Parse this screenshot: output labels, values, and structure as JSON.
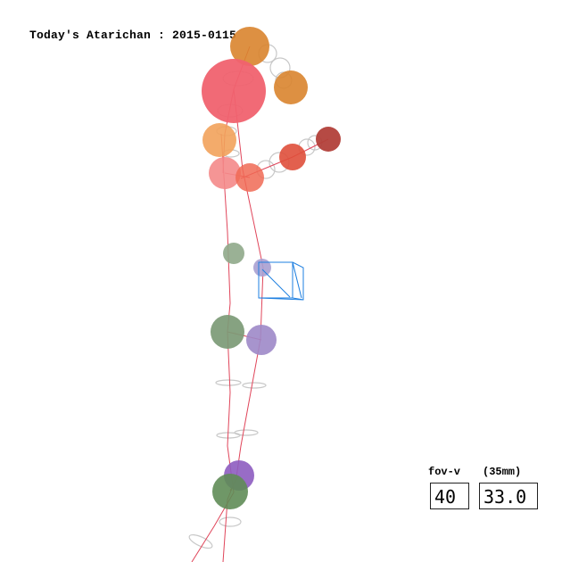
{
  "title": "Today's Atarichan : 2015-0115",
  "camera": {
    "fov_label": "fov-v",
    "lens_label": "(35mm)",
    "fov_value": "40",
    "lens_value": "33.0"
  },
  "colors": {
    "background": "#ffffff",
    "bone_line": "#e0455a",
    "outline_ring": "#c8c8c8",
    "camera_gizmo": "#1e7fe0",
    "head": "#f0626f",
    "hair": "#d9842e",
    "shoulder": "#f2a25b",
    "chest": "#f48a8a",
    "upper_arm": "#f06a55",
    "forearm": "#df4f3b",
    "hand": "#b2403a",
    "hip_left": "#8fa88a",
    "hip_right": "#a9a0d2",
    "knee_left": "#7c9a76",
    "knee_right": "#9d88c8",
    "ankle_left": "#5f8c57",
    "ankle_right": "#8d5cc0"
  },
  "joints": [
    {
      "name": "hair-tail-upper",
      "color_key": "hair"
    },
    {
      "name": "head",
      "color_key": "head"
    },
    {
      "name": "hair-tail-lower",
      "color_key": "hair"
    },
    {
      "name": "shoulder-left",
      "color_key": "shoulder"
    },
    {
      "name": "chest-left",
      "color_key": "chest"
    },
    {
      "name": "chest-right",
      "color_key": "upper_arm"
    },
    {
      "name": "elbow-right",
      "color_key": "forearm"
    },
    {
      "name": "hand-right",
      "color_key": "hand"
    },
    {
      "name": "hip-left",
      "color_key": "hip_left"
    },
    {
      "name": "hip-right",
      "color_key": "hip_right"
    },
    {
      "name": "knee-left",
      "color_key": "knee_left"
    },
    {
      "name": "knee-right",
      "color_key": "knee_right"
    },
    {
      "name": "ankle-right",
      "color_key": "ankle_right"
    },
    {
      "name": "ankle-left",
      "color_key": "ankle_left"
    }
  ]
}
